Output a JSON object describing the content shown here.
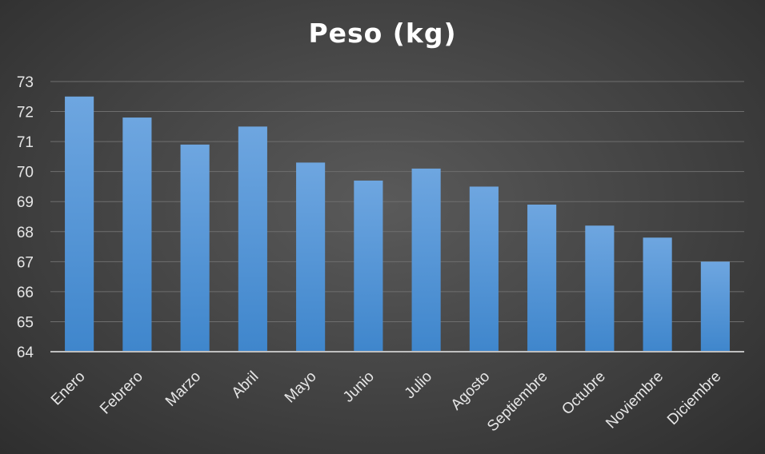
{
  "chart_data": {
    "type": "bar",
    "title": "Peso (kg)",
    "xlabel": "",
    "ylabel": "",
    "categories": [
      "Enero",
      "Febrero",
      "Marzo",
      "Abril",
      "Mayo",
      "Junio",
      "Julio",
      "Agosto",
      "Septiembre",
      "Octubre",
      "Noviembre",
      "Diciembre"
    ],
    "values": [
      72.5,
      71.8,
      70.9,
      71.5,
      70.3,
      69.7,
      70.1,
      69.5,
      68.9,
      68.2,
      67.8,
      67.0
    ],
    "ylim": [
      64,
      73
    ],
    "yticks": [
      64,
      65,
      66,
      67,
      68,
      69,
      70,
      71,
      72,
      73
    ],
    "grid": true,
    "legend": "none",
    "colors": {
      "bar_top": "#6ea6e0",
      "bar_bottom": "#3f86cc",
      "background": "#404040",
      "text": "#ffffff"
    }
  }
}
